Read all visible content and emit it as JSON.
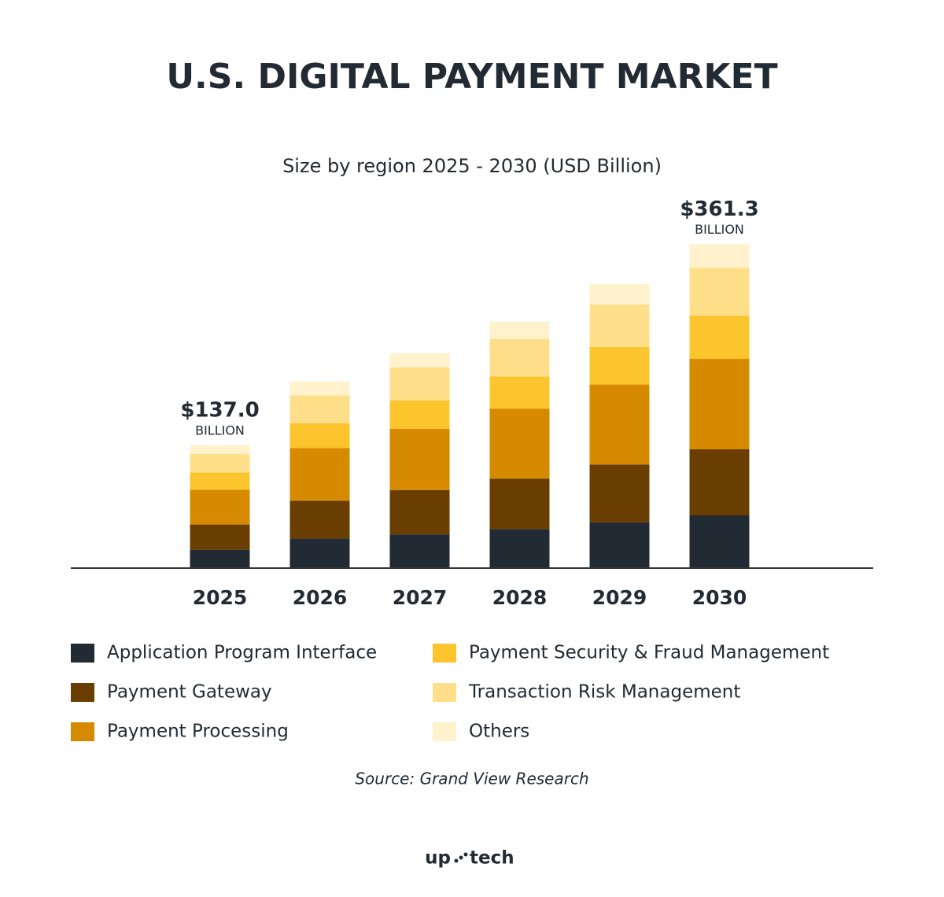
{
  "chart_data": {
    "type": "stacked_bar",
    "title": "U.S. DIGITAL PAYMENT MARKET",
    "subtitle": "Size by region 2025 - 2030 (USD Billion)",
    "categories": [
      "2025",
      "2026",
      "2027",
      "2028",
      "2029",
      "2030"
    ],
    "series": [
      {
        "name": "Application Program Interface",
        "color": "#222a33",
        "values": [
          20.5,
          33.0,
          37.6,
          43.7,
          51.0,
          58.8
        ]
      },
      {
        "name": "Payment Gateway",
        "color": "#6a3d00",
        "values": [
          28.1,
          42.2,
          49.5,
          56.1,
          64.6,
          73.7
        ]
      },
      {
        "name": "Payment Processing",
        "color": "#d68a00",
        "values": [
          38.8,
          58.7,
          68.3,
          77.9,
          89.2,
          100.9
        ]
      },
      {
        "name": "Payment Security & Fraud Management",
        "color": "#fcc52e",
        "values": [
          19.4,
          27.8,
          31.7,
          36.1,
          41.9,
          48.2
        ]
      },
      {
        "name": "Transaction Risk Management",
        "color": "#ffdf8a",
        "values": [
          20.5,
          30.9,
          36.6,
          41.8,
          47.3,
          53.5
        ]
      },
      {
        "name": "Others",
        "color": "#fff2cc",
        "values": [
          9.7,
          15.5,
          15.8,
          19.0,
          22.8,
          26.2
        ]
      }
    ],
    "annotations": [
      {
        "x": "2025",
        "label": "$137.0",
        "unit": "BILLION"
      },
      {
        "x": "2030",
        "label": "$361.3",
        "unit": "BILLION"
      }
    ],
    "ylim": [
      0,
      380
    ],
    "source": "Source: Grand View Research",
    "logo": [
      "up",
      "tech"
    ]
  }
}
